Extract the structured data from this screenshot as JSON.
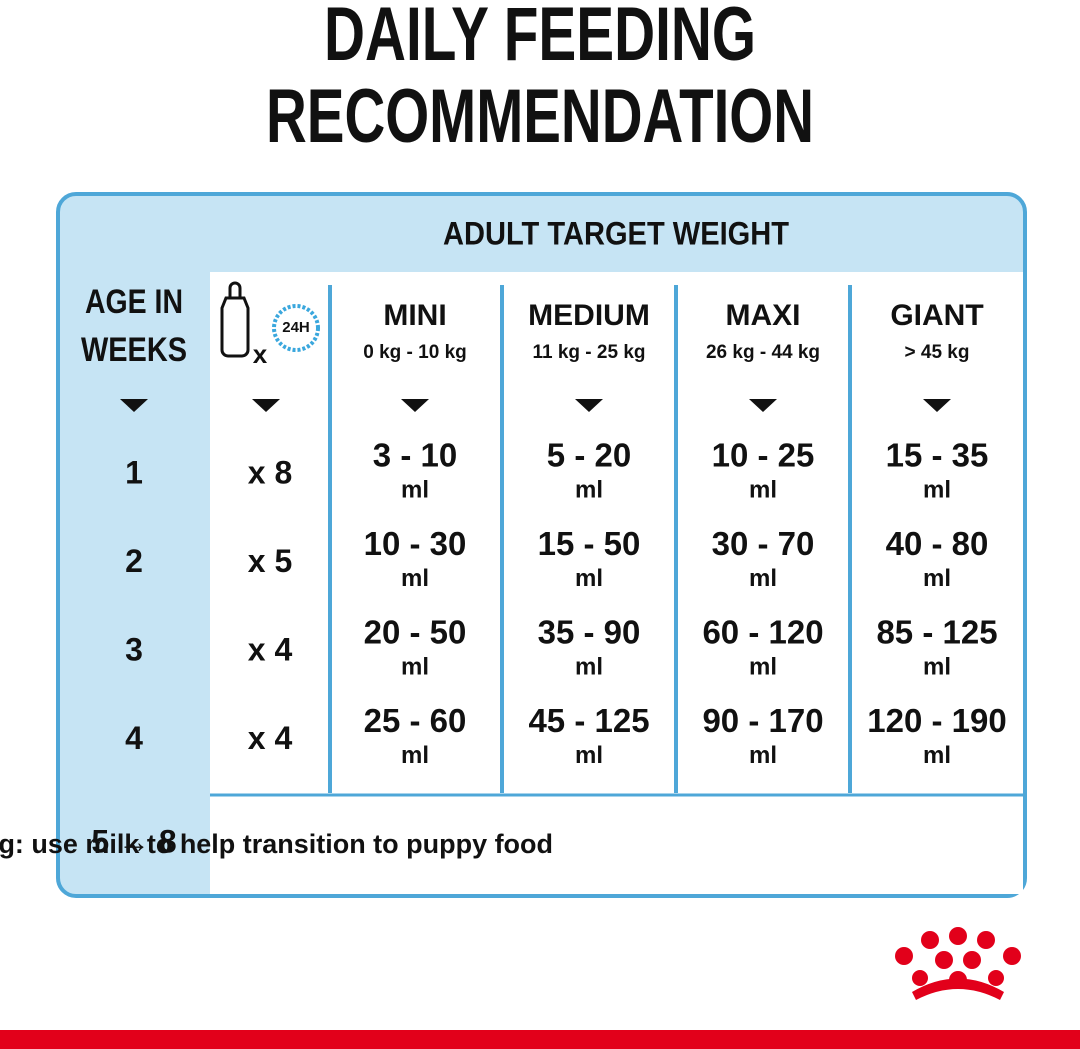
{
  "title": "DAILY FEEDING RECOMMENDATION",
  "header": "ADULT TARGET WEIGHT",
  "age_header": "AGE IN WEEKS",
  "icon": {
    "clock": "24H",
    "times": "x"
  },
  "columns": [
    {
      "name": "MINI",
      "range": "0 kg - 10 kg"
    },
    {
      "name": "MEDIUM",
      "range": "11 kg - 25 kg"
    },
    {
      "name": "MAXI",
      "range": "26 kg - 44 kg"
    },
    {
      "name": "GIANT",
      "range": "> 45 kg"
    }
  ],
  "unit": "ml",
  "rows": [
    {
      "week": "1",
      "feedings": "x 8",
      "amounts": [
        "3 - 10",
        "5 - 20",
        "10 - 25",
        "15 - 35"
      ]
    },
    {
      "week": "2",
      "feedings": "x 5",
      "amounts": [
        "10 - 30",
        "15 - 50",
        "30 - 70",
        "40 - 80"
      ]
    },
    {
      "week": "3",
      "feedings": "x 4",
      "amounts": [
        "20 - 50",
        "35 - 90",
        "60 - 120",
        "85 - 125"
      ]
    },
    {
      "week": "4",
      "feedings": "x 4",
      "amounts": [
        "25 - 60",
        "45 - 125",
        "90 - 170",
        "120 - 190"
      ]
    }
  ],
  "weaning": {
    "weeks": "5 → 8",
    "text": "Weaning: use milk to help transition to puppy food"
  }
}
